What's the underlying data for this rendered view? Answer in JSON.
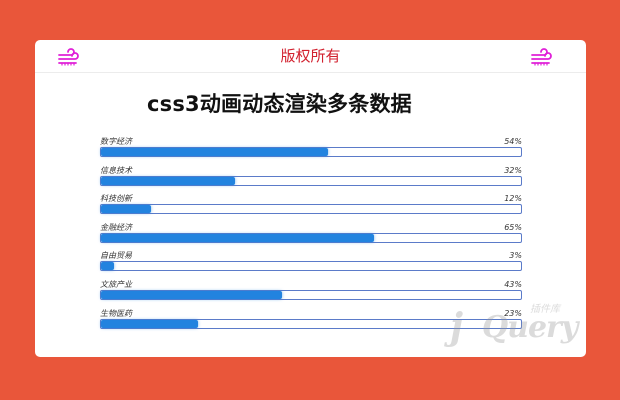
{
  "header": {
    "title": "版权所有",
    "left_icon": "wind-icon",
    "right_icon": "wind-icon",
    "icon_color": "#E020D8",
    "title_color": "#D2202E"
  },
  "page": {
    "title": "css3动画动态渲染多条数据",
    "background_color": "#E9563A",
    "bar_color": "#2283DF",
    "track_border_color": "#5B7BC9"
  },
  "bars": [
    {
      "label": "数字经济",
      "value": "54%",
      "percent": 54
    },
    {
      "label": "信息技术",
      "value": "32%",
      "percent": 32
    },
    {
      "label": "科技创新",
      "value": "12%",
      "percent": 12
    },
    {
      "label": "金融经济",
      "value": "65%",
      "percent": 65
    },
    {
      "label": "自由贸易",
      "value": "3%",
      "percent": 3
    },
    {
      "label": "文旅产业",
      "value": "43%",
      "percent": 43
    },
    {
      "label": "生物医药",
      "value": "23%",
      "percent": 23
    }
  ],
  "watermark": {
    "logo_j": "j",
    "logo_rest": "Query",
    "subtitle_cn": "插件库"
  }
}
